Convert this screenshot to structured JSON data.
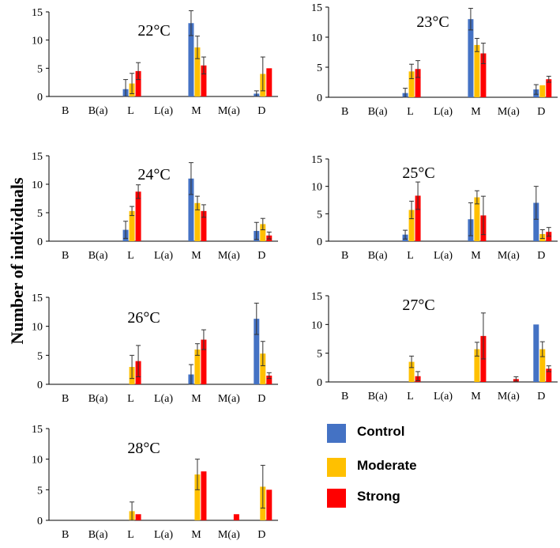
{
  "figure": {
    "ylabel": "Number of individuals",
    "categories": [
      "B",
      "B(a)",
      "L",
      "L(a)",
      "M",
      "M(a)",
      "D"
    ],
    "y_ticks": [
      0,
      5,
      10,
      15
    ],
    "ylim": [
      0,
      15
    ],
    "legend": [
      {
        "name": "Control",
        "color": "#4472C4"
      },
      {
        "name": "Moderate",
        "color": "#FFC000"
      },
      {
        "name": "Strong",
        "color": "#FF0000"
      }
    ]
  },
  "chart_data": [
    {
      "type": "bar",
      "title": "22°C",
      "categories": [
        "B",
        "B(a)",
        "L",
        "L(a)",
        "M",
        "M(a)",
        "D"
      ],
      "ylim": [
        0,
        15
      ],
      "series": [
        {
          "name": "Control",
          "values": [
            0,
            0,
            1.3,
            0,
            13,
            0,
            0.5
          ],
          "errors": [
            0,
            0,
            1.7,
            0,
            2.2,
            0,
            0.5
          ]
        },
        {
          "name": "Moderate",
          "values": [
            0,
            0,
            2.3,
            0,
            8.7,
            0,
            4
          ],
          "errors": [
            0,
            0,
            1.8,
            0,
            2,
            0,
            3
          ]
        },
        {
          "name": "Strong",
          "values": [
            0,
            0,
            4.5,
            0,
            5.5,
            0,
            5
          ],
          "errors": [
            0,
            0,
            1.5,
            0,
            1.5,
            0,
            0
          ]
        }
      ]
    },
    {
      "type": "bar",
      "title": "23°C",
      "categories": [
        "B",
        "B(a)",
        "L",
        "L(a)",
        "M",
        "M(a)",
        "D"
      ],
      "ylim": [
        0,
        15
      ],
      "series": [
        {
          "name": "Control",
          "values": [
            0,
            0,
            0.7,
            0,
            13,
            0,
            1.3
          ],
          "errors": [
            0,
            0,
            0.8,
            0,
            1.8,
            0,
            0.8
          ]
        },
        {
          "name": "Moderate",
          "values": [
            0,
            0,
            4.3,
            0,
            8.7,
            0,
            2
          ],
          "errors": [
            0,
            0,
            1.2,
            0,
            1.1,
            0,
            0
          ]
        },
        {
          "name": "Strong",
          "values": [
            0,
            0,
            4.7,
            0,
            7.3,
            0,
            3
          ],
          "errors": [
            0,
            0,
            1.4,
            0,
            1.7,
            0,
            0.5
          ]
        }
      ]
    },
    {
      "type": "bar",
      "title": "24°C",
      "categories": [
        "B",
        "B(a)",
        "L",
        "L(a)",
        "M",
        "M(a)",
        "D"
      ],
      "ylim": [
        0,
        15
      ],
      "series": [
        {
          "name": "Control",
          "values": [
            0,
            0,
            2,
            0,
            11,
            0,
            1.8
          ],
          "errors": [
            0,
            0,
            1.5,
            0,
            2.8,
            0,
            1.5
          ]
        },
        {
          "name": "Moderate",
          "values": [
            0,
            0,
            5.3,
            0,
            6.7,
            0,
            3
          ],
          "errors": [
            0,
            0,
            0.8,
            0,
            1.2,
            0,
            1
          ]
        },
        {
          "name": "Strong",
          "values": [
            0,
            0,
            8.7,
            0,
            5.3,
            0,
            1
          ],
          "errors": [
            0,
            0,
            1.2,
            0,
            1.1,
            0,
            0.6
          ]
        }
      ]
    },
    {
      "type": "bar",
      "title": "25°C",
      "categories": [
        "B",
        "B(a)",
        "L",
        "L(a)",
        "M",
        "M(a)",
        "D"
      ],
      "ylim": [
        0,
        15
      ],
      "series": [
        {
          "name": "Control",
          "values": [
            0,
            0,
            1.2,
            0,
            4,
            0,
            7
          ],
          "errors": [
            0,
            0,
            0.8,
            0,
            3,
            0,
            3
          ]
        },
        {
          "name": "Moderate",
          "values": [
            0,
            0,
            5.7,
            0,
            8,
            0,
            1.3
          ],
          "errors": [
            0,
            0,
            1.6,
            0,
            1.2,
            0,
            0.8
          ]
        },
        {
          "name": "Strong",
          "values": [
            0,
            0,
            8.3,
            0,
            4.7,
            0,
            1.7
          ],
          "errors": [
            0,
            0,
            2.5,
            0,
            3.5,
            0,
            0.8
          ]
        }
      ]
    },
    {
      "type": "bar",
      "title": "26°C",
      "categories": [
        "B",
        "B(a)",
        "L",
        "L(a)",
        "M",
        "M(a)",
        "D"
      ],
      "ylim": [
        0,
        15
      ],
      "series": [
        {
          "name": "Control",
          "values": [
            0,
            0,
            0,
            0,
            1.7,
            0,
            11.3
          ],
          "errors": [
            0,
            0,
            0,
            0,
            1.7,
            0,
            2.7
          ]
        },
        {
          "name": "Moderate",
          "values": [
            0,
            0,
            3,
            0,
            6,
            0,
            5.3
          ],
          "errors": [
            0,
            0,
            2,
            0,
            1,
            0,
            2.1
          ]
        },
        {
          "name": "Strong",
          "values": [
            0,
            0,
            4,
            0,
            7.7,
            0,
            1.5
          ],
          "errors": [
            0,
            0,
            2.7,
            0,
            1.7,
            0,
            0.5
          ]
        }
      ]
    },
    {
      "type": "bar",
      "title": "27°C",
      "categories": [
        "B",
        "B(a)",
        "L",
        "L(a)",
        "M",
        "M(a)",
        "D"
      ],
      "ylim": [
        0,
        15
      ],
      "series": [
        {
          "name": "Control",
          "values": [
            0,
            0,
            0,
            0,
            0,
            0,
            10
          ],
          "errors": [
            0,
            0,
            0,
            0,
            0,
            0,
            0
          ]
        },
        {
          "name": "Moderate",
          "values": [
            0,
            0,
            3.5,
            0,
            5.7,
            0,
            5.7
          ],
          "errors": [
            0,
            0,
            1,
            0,
            1.2,
            0,
            1.3
          ]
        },
        {
          "name": "Strong",
          "values": [
            0,
            0,
            1,
            0,
            8,
            0.5,
            2.3
          ],
          "errors": [
            0,
            0,
            0.8,
            0,
            4,
            0.4,
            0.5
          ]
        }
      ]
    },
    {
      "type": "bar",
      "title": "28°C",
      "categories": [
        "B",
        "B(a)",
        "L",
        "L(a)",
        "M",
        "M(a)",
        "D"
      ],
      "ylim": [
        0,
        15
      ],
      "series": [
        {
          "name": "Control",
          "values": [
            0,
            0,
            0,
            0,
            0,
            0,
            0
          ],
          "errors": [
            0,
            0,
            0,
            0,
            0,
            0,
            0
          ]
        },
        {
          "name": "Moderate",
          "values": [
            0,
            0,
            1.5,
            0,
            7.5,
            0,
            5.5
          ],
          "errors": [
            0,
            0,
            1.5,
            0,
            2.5,
            0,
            3.5
          ]
        },
        {
          "name": "Strong",
          "values": [
            0,
            0,
            1,
            0,
            8,
            1,
            5
          ],
          "errors": [
            0,
            0,
            0,
            0,
            0,
            0,
            0
          ]
        }
      ]
    }
  ]
}
